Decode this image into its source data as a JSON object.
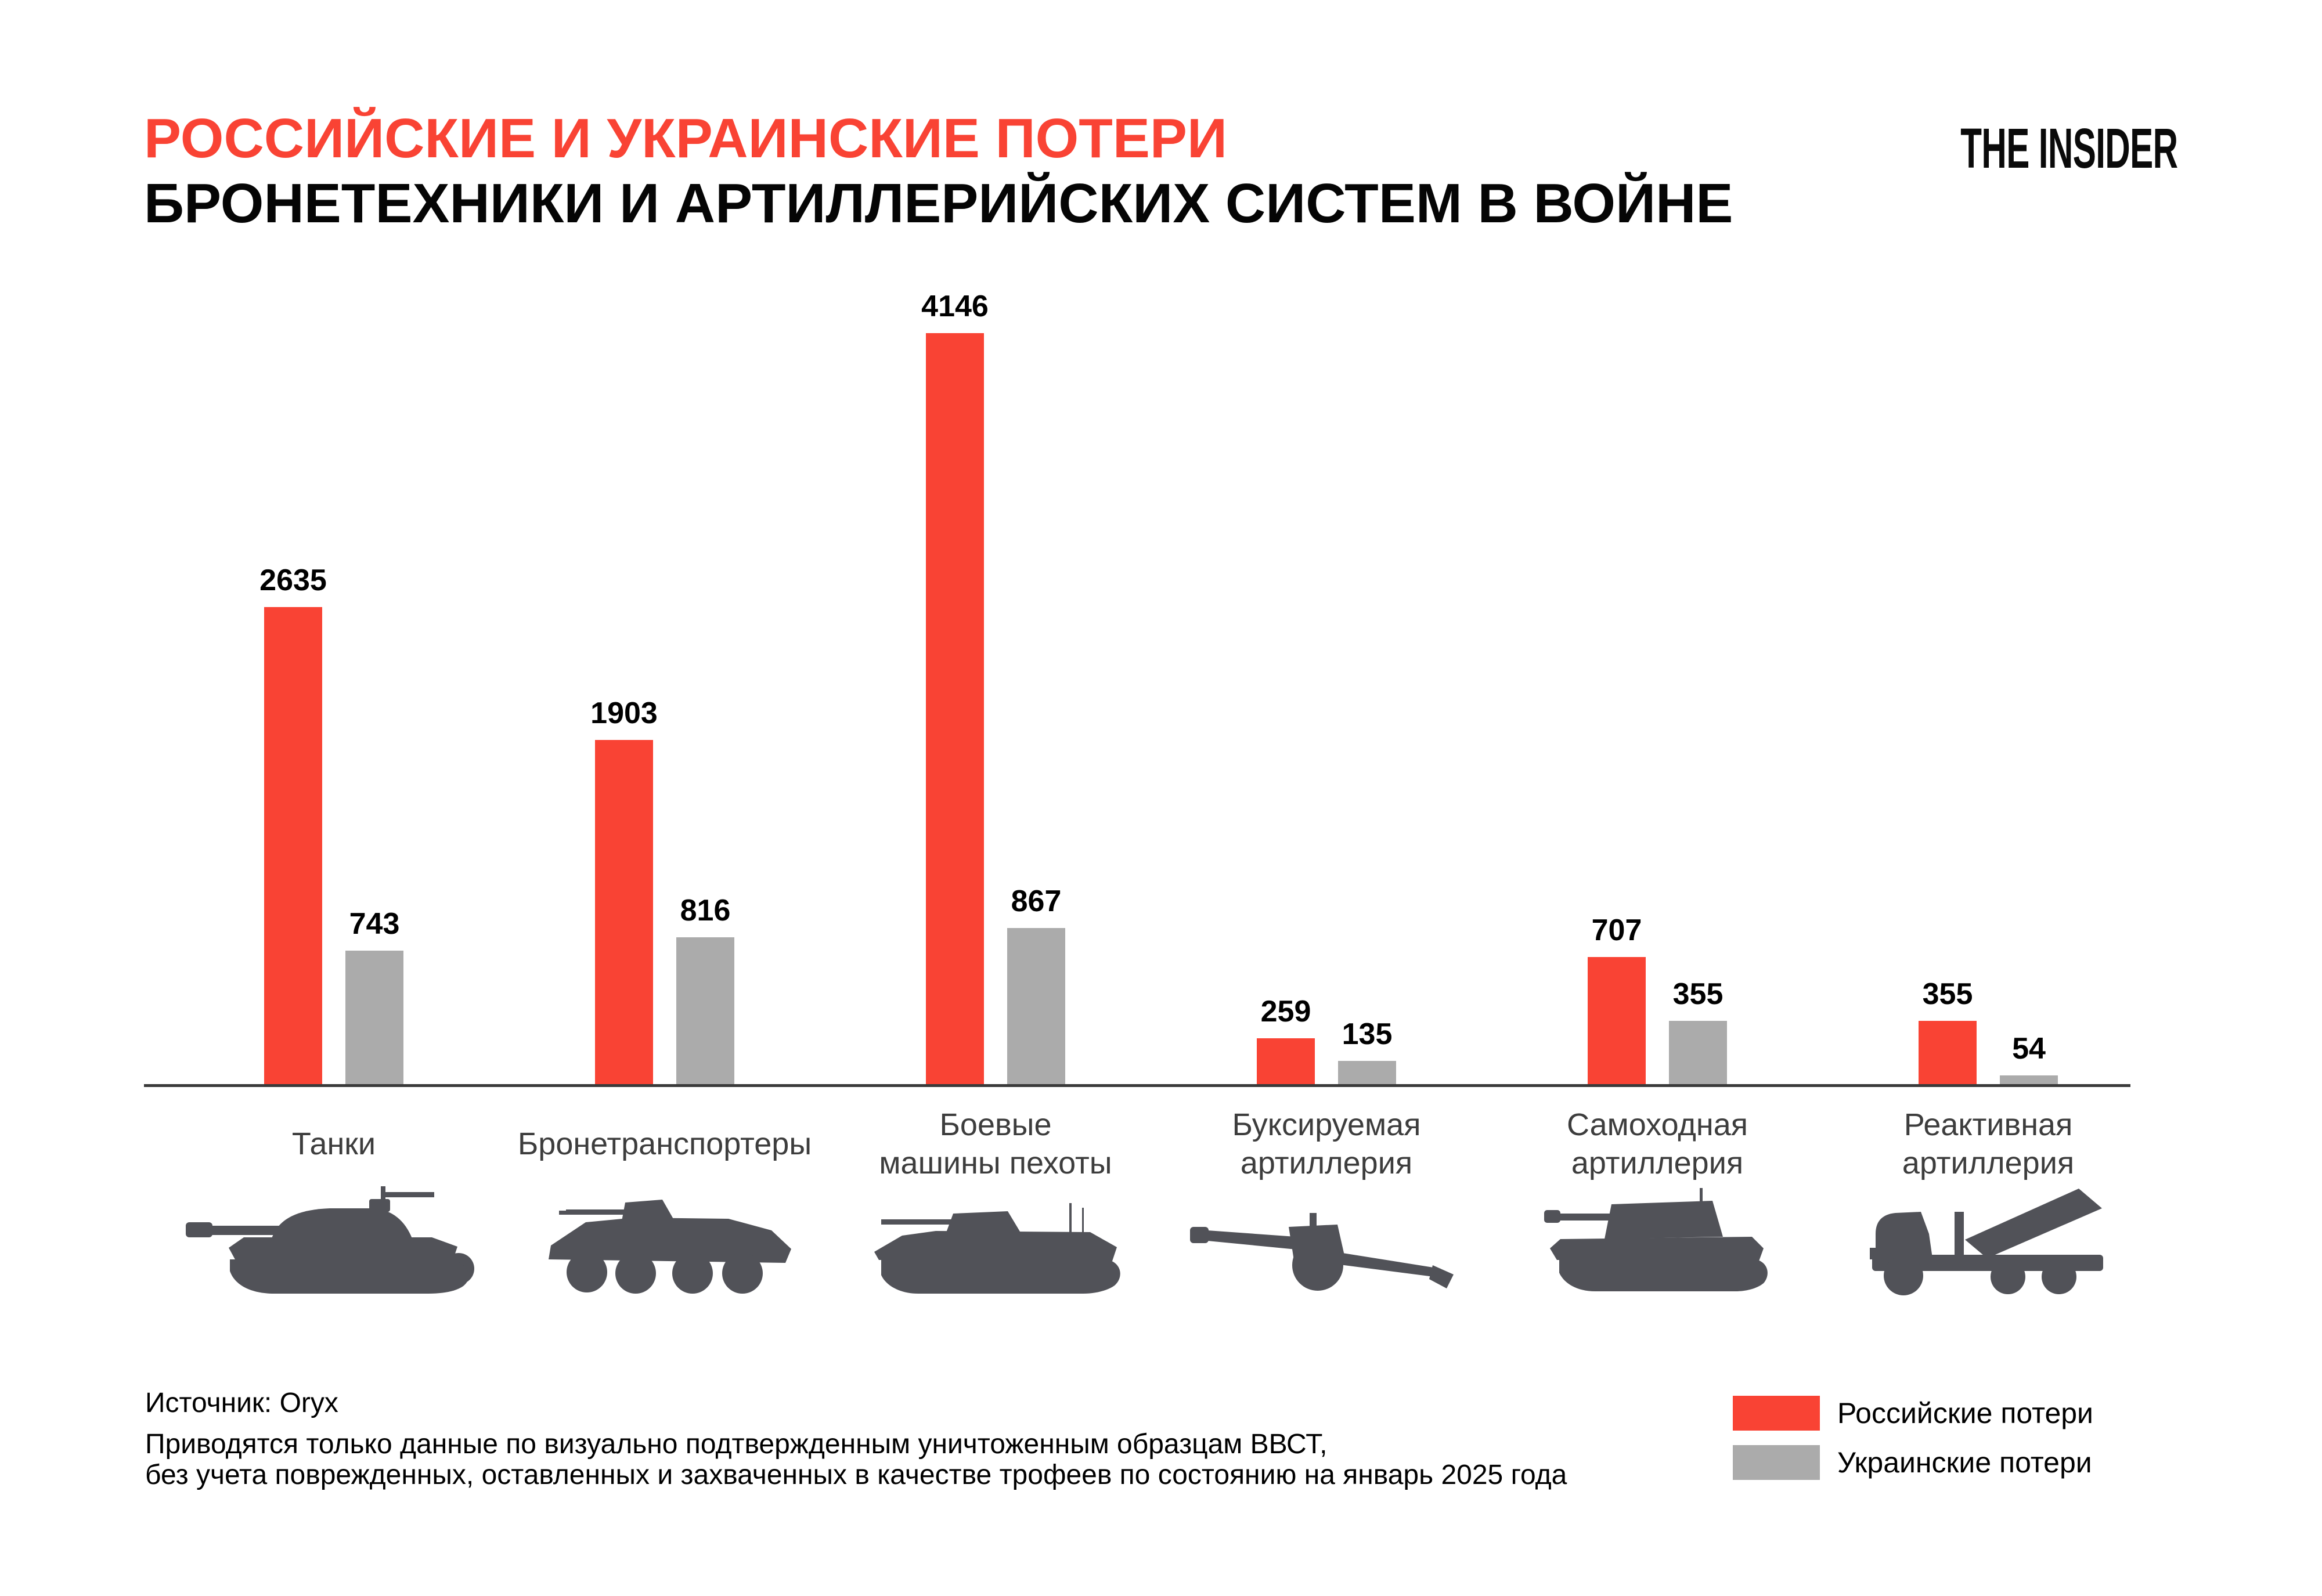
{
  "header": {
    "title_line1": "РОССИЙСКИЕ И УКРАИНСКИЕ ПОТЕРИ",
    "title_line2": "БРОНЕТЕХНИКИ И АРТИЛЛЕРИЙСКИХ СИСТЕМ В ВОЙНЕ",
    "title_color": "#F94334",
    "logo_text": "THE INSIDER"
  },
  "chart_data": {
    "type": "bar",
    "categories": [
      "Танки",
      "Бронетранспортеры",
      "Боевые машины пехоты",
      "Буксируемая артиллерия",
      "Самоходная артиллерия",
      "Реактивная артиллерия"
    ],
    "category_lines": [
      [
        "Танки"
      ],
      [
        "Бронетранспортеры"
      ],
      [
        "Боевые",
        "машины пехоты"
      ],
      [
        "Буксируемая",
        "артиллерия"
      ],
      [
        "Самоходная",
        "артиллерия"
      ],
      [
        "Реактивная",
        "артиллерия"
      ]
    ],
    "series": [
      {
        "name": "Российские потери",
        "color": "#F94334",
        "values": [
          2635,
          1903,
          4146,
          259,
          707,
          355
        ]
      },
      {
        "name": "Украинские потери",
        "color": "#ABABAB",
        "values": [
          743,
          816,
          867,
          135,
          355,
          54
        ]
      }
    ],
    "value_labels_shown": true,
    "ylim": [
      0,
      4146
    ],
    "grid": false,
    "legend_position": "bottom-right",
    "axis_color": "#3A3A3A",
    "category_text_color": "#3D3D3D",
    "silhouette_color": "#515258",
    "category_icons": [
      "tank-icon",
      "apc-icon",
      "ifv-icon",
      "towed-howitzer-icon",
      "self-propelled-artillery-icon",
      "mlrs-icon"
    ]
  },
  "source": {
    "line1": "Источник: Oryx",
    "line2": "Приводятся только данные по визуально подтвержденным уничтоженным образцам ВВСТ,",
    "line3": "без учета поврежденных, оставленных и захваченных в качестве трофеев по состоянию на январь 2025 года"
  }
}
